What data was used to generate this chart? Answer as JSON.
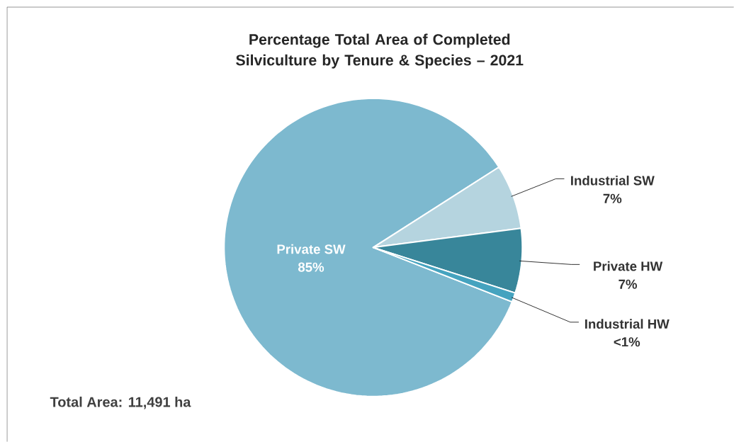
{
  "chart_data": {
    "type": "pie",
    "title": "Percentage Total Area of Completed Silviculture by Tenure & Species – 2021",
    "categories": [
      "Private SW",
      "Industrial SW",
      "Private HW",
      "Industrial HW"
    ],
    "values": [
      85,
      7,
      7,
      1
    ],
    "value_labels": [
      "85%",
      "7%",
      "7%",
      "<1%"
    ],
    "colors": [
      "#7db9cf",
      "#b5d4df",
      "#38869a",
      "#45a3bf"
    ],
    "annotations": [
      "Total Area: 11,491 ha"
    ]
  }
}
